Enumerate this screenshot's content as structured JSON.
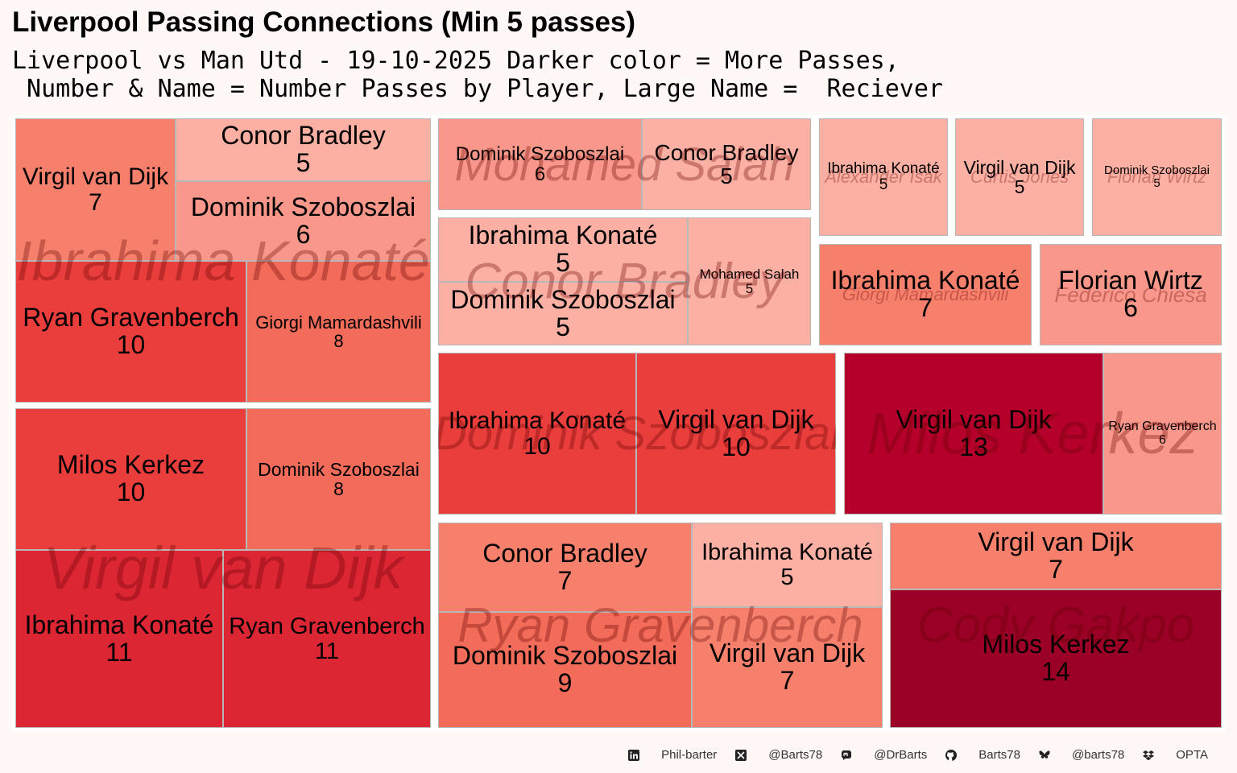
{
  "title": "Liverpool Passing Connections (Min 5 passes)",
  "subtitle": "Liverpool vs Man Utd - 19-10-2025 Darker color = More Passes,\n Number & Name = Number Passes by Player, Large Name =  Reciever",
  "colors": {
    "scale": [
      "#fcb0a3",
      "#f9988a",
      "#f7806c",
      "#f26c59",
      "#e93e3c",
      "#dc2634",
      "#b5002b",
      "#9b0027"
    ],
    "background": "#fff8f7"
  },
  "chart_data": {
    "type": "treemap",
    "title": "Liverpool Passing Connections (Min 5 passes)",
    "value_label": "passes",
    "groups": [
      {
        "receiver": "Virgil van Dijk",
        "passers": [
          {
            "name": "Ibrahima Konaté",
            "count": 11
          },
          {
            "name": "Ryan Gravenberch",
            "count": 11
          },
          {
            "name": "Milos Kerkez",
            "count": 10
          },
          {
            "name": "Dominik Szoboszlai",
            "count": 8
          }
        ]
      },
      {
        "receiver": "Ibrahima Konaté",
        "passers": [
          {
            "name": "Ryan Gravenberch",
            "count": 10
          },
          {
            "name": "Giorgi Mamardashvili",
            "count": 8
          },
          {
            "name": "Virgil van Dijk",
            "count": 7
          },
          {
            "name": "Dominik Szoboszlai",
            "count": 6
          },
          {
            "name": "Conor Bradley",
            "count": 5
          }
        ]
      },
      {
        "receiver": "Ryan Gravenberch",
        "passers": [
          {
            "name": "Dominik Szoboszlai",
            "count": 9
          },
          {
            "name": "Conor Bradley",
            "count": 7
          },
          {
            "name": "Virgil van Dijk",
            "count": 7
          },
          {
            "name": "Ibrahima Konaté",
            "count": 5
          }
        ]
      },
      {
        "receiver": "Cody Gakpo",
        "passers": [
          {
            "name": "Milos Kerkez",
            "count": 14
          },
          {
            "name": "Virgil van Dijk",
            "count": 7
          }
        ]
      },
      {
        "receiver": "Dominik Szoboszlai",
        "passers": [
          {
            "name": "Ibrahima Konaté",
            "count": 10
          },
          {
            "name": "Virgil van Dijk",
            "count": 10
          }
        ]
      },
      {
        "receiver": "Milos Kerkez",
        "passers": [
          {
            "name": "Virgil van Dijk",
            "count": 13
          },
          {
            "name": "Ryan Gravenberch",
            "count": 6
          }
        ]
      },
      {
        "receiver": "Conor Bradley",
        "passers": [
          {
            "name": "Ibrahima Konaté",
            "count": 5
          },
          {
            "name": "Dominik Szoboszlai",
            "count": 5
          },
          {
            "name": "Mohamed Salah",
            "count": 5
          }
        ]
      },
      {
        "receiver": "Mohamed Salah",
        "passers": [
          {
            "name": "Dominik Szoboszlai",
            "count": 6
          },
          {
            "name": "Conor Bradley",
            "count": 5
          }
        ]
      },
      {
        "receiver": "Giorgi Mamardashvili",
        "passers": [
          {
            "name": "Ibrahima Konaté",
            "count": 7
          }
        ]
      },
      {
        "receiver": "Federico Chiesa",
        "passers": [
          {
            "name": "Florian Wirtz",
            "count": 6
          }
        ]
      },
      {
        "receiver": "Alexander Isak",
        "passers": [
          {
            "name": "Ibrahima Konaté",
            "count": 5
          }
        ]
      },
      {
        "receiver": "Curtis Jones",
        "passers": [
          {
            "name": "Virgil van Dijk",
            "count": 5
          }
        ]
      },
      {
        "receiver": "Florian Wirtz",
        "passers": [
          {
            "name": "Dominik Szoboszlai",
            "count": 5
          }
        ]
      }
    ]
  },
  "footer": {
    "items": [
      {
        "icon": "linkedin-icon",
        "text": "Phil-barter"
      },
      {
        "icon": "x-twitter-icon",
        "text": "@Barts78"
      },
      {
        "icon": "mastodon-icon",
        "text": "@DrBarts"
      },
      {
        "icon": "github-icon",
        "text": "Barts78"
      },
      {
        "icon": "bluesky-icon",
        "text": "@barts78"
      },
      {
        "icon": "dropbox-icon",
        "text": "OPTA"
      }
    ]
  }
}
